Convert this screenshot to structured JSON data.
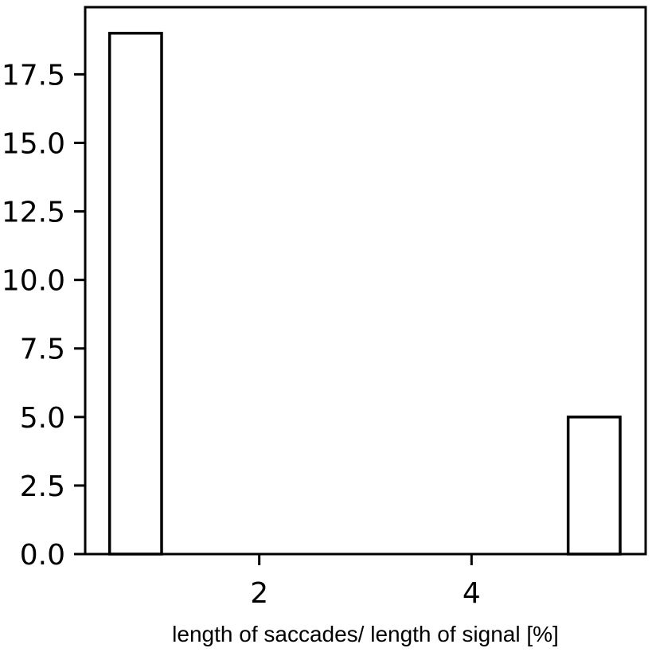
{
  "chart_data": {
    "type": "bar",
    "title": "",
    "xlabel": "length of saccades/ length of signal [%]",
    "ylabel": "",
    "bars": [
      {
        "x_start": 0.59,
        "x_end": 1.08,
        "value": 19
      },
      {
        "x_start": 4.91,
        "x_end": 5.4,
        "value": 5
      }
    ],
    "xlim": [
      0.36,
      5.64
    ],
    "ylim": [
      0,
      19.95
    ],
    "x_ticks": [
      2,
      4
    ],
    "x_tick_labels": [
      "2",
      "4"
    ],
    "y_ticks": [
      0,
      2.5,
      5,
      7.5,
      10,
      12.5,
      15,
      17.5
    ],
    "y_tick_labels": [
      "0.0",
      "2.5",
      "5.0",
      "7.5",
      "10.0",
      "12.5",
      "15.0",
      "17.5"
    ],
    "grid": false,
    "bar_fill": "#ffffff",
    "bar_edge": "#000000"
  }
}
